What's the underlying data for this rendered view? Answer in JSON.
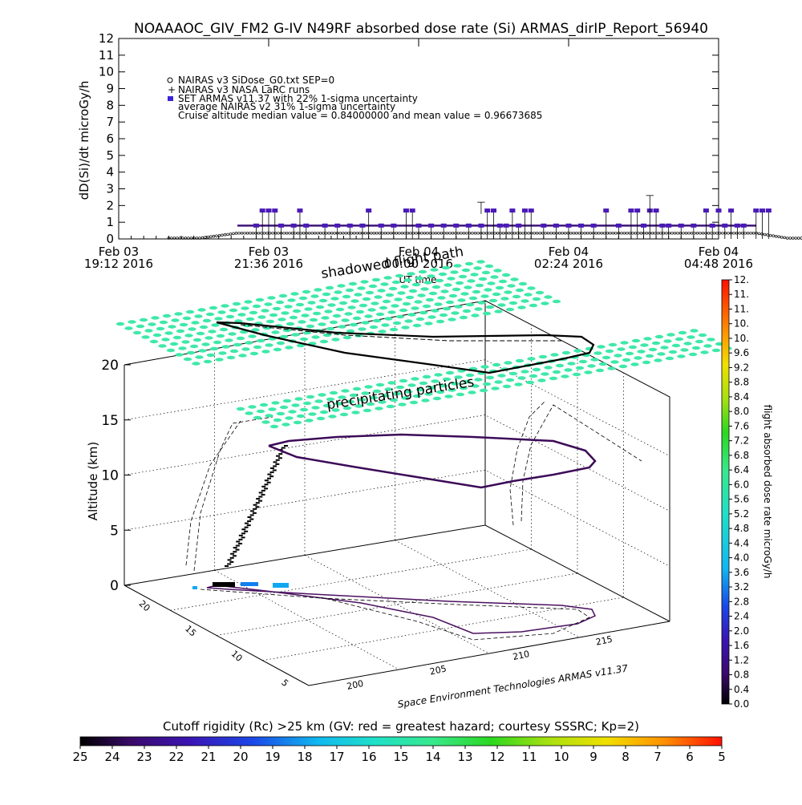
{
  "title": "NOAAAOC_GIV_FM2 G-IV   N49RF  absorbed dose rate (Si) ARMAS_dirIP_Report_56940",
  "chart_data": [
    {
      "type": "scatter",
      "ylabel": "dD(Si)/dt microGy/h",
      "xlabel": "UT time",
      "ylim": [
        0,
        12
      ],
      "y_ticks": [
        "0",
        "1",
        "2",
        "3",
        "4",
        "5",
        "6",
        "7",
        "8",
        "9",
        "10",
        "11",
        "12"
      ],
      "x_ticks": [
        {
          "line1": "Feb 03",
          "line2": "19:12 2016"
        },
        {
          "line1": "Feb 03",
          "line2": "21:36 2016"
        },
        {
          "line1": "Feb 04",
          "line2": "00:00 2016"
        },
        {
          "line1": "Feb 04",
          "line2": "02:24 2016"
        },
        {
          "line1": "Feb 04",
          "line2": "04:48 2016"
        }
      ],
      "x_tick_hours": [
        0,
        2.4,
        4.8,
        7.2,
        9.6
      ],
      "legend": [
        "NAIRAS v3 SiDose_G0.txt SEP=0",
        "NAIRAS v3 NASA LaRC runs",
        "SET ARMAS v11.37 with 22% 1-sigma uncertainty",
        "average NAIRAS v2 31% 1-sigma uncertainty",
        "Cruise altitude median value = 0.84000000 and mean value = 0.96673685"
      ],
      "legend_placement": "top-left",
      "series": [
        {
          "name": "SET ARMAS v11.37 with 22% 1-sigma uncertainty",
          "color": "#4a1ab8",
          "points": [
            [
              2.2,
              0.8
            ],
            [
              2.3,
              1.7
            ],
            [
              2.4,
              1.7
            ],
            [
              2.5,
              1.7
            ],
            [
              2.6,
              0.8
            ],
            [
              2.8,
              0.8
            ],
            [
              2.9,
              1.7
            ],
            [
              3.0,
              0.8
            ],
            [
              3.3,
              0.8
            ],
            [
              3.5,
              0.8
            ],
            [
              3.7,
              0.8
            ],
            [
              3.9,
              0.8
            ],
            [
              4.0,
              1.7
            ],
            [
              4.2,
              0.8
            ],
            [
              4.4,
              0.8
            ],
            [
              4.6,
              1.7
            ],
            [
              4.7,
              1.7
            ],
            [
              4.8,
              0.8
            ],
            [
              5.0,
              0.8
            ],
            [
              5.2,
              0.8
            ],
            [
              5.4,
              0.8
            ],
            [
              5.6,
              0.8
            ],
            [
              5.8,
              0.8
            ],
            [
              5.9,
              1.7
            ],
            [
              6.0,
              1.7
            ],
            [
              6.1,
              0.8
            ],
            [
              6.2,
              0.8
            ],
            [
              6.3,
              1.7
            ],
            [
              6.4,
              0.8
            ],
            [
              6.5,
              1.7
            ],
            [
              6.6,
              1.7
            ],
            [
              6.8,
              0.8
            ],
            [
              7.0,
              0.8
            ],
            [
              7.2,
              0.8
            ],
            [
              7.4,
              0.8
            ],
            [
              7.6,
              0.8
            ],
            [
              7.8,
              1.7
            ],
            [
              8.0,
              0.8
            ],
            [
              8.2,
              1.7
            ],
            [
              8.3,
              1.7
            ],
            [
              8.4,
              0.8
            ],
            [
              8.5,
              1.7
            ],
            [
              8.6,
              1.7
            ],
            [
              8.7,
              0.8
            ],
            [
              8.8,
              0.8
            ],
            [
              9.0,
              0.8
            ],
            [
              9.2,
              0.8
            ],
            [
              9.4,
              1.7
            ],
            [
              9.5,
              0.8
            ],
            [
              9.6,
              1.7
            ],
            [
              9.7,
              0.8
            ],
            [
              9.8,
              1.7
            ],
            [
              9.9,
              0.8
            ],
            [
              10.0,
              0.8
            ],
            [
              10.2,
              1.7
            ],
            [
              10.3,
              1.7
            ],
            [
              10.4,
              1.7
            ]
          ]
        },
        {
          "name": "NAIRAS v3 SiDose_G0.txt SEP=0",
          "color": "#000000",
          "segment": {
            "x_start": 0.8,
            "x_end": 11.0,
            "cruise_start": 1.9,
            "cruise_end": 10.2,
            "cruise_value": 0.35
          }
        }
      ]
    },
    {
      "type": "scatter",
      "title": "shadowed flight path",
      "zlabel": "Altitude (km)",
      "z_ticks": [
        "0",
        "5",
        "10",
        "15",
        "20"
      ],
      "zlim": [
        0,
        20
      ],
      "lon_ticks": [
        "200",
        "205",
        "210",
        "215"
      ],
      "lat_ticks": [
        "5",
        "10",
        "15",
        "20"
      ],
      "credit": "Space Environment Technologies ARMAS v11.37",
      "annotation": "precipitating particles",
      "colorbar": {
        "label": "flight absorbed dose rate microGy/h",
        "range": [
          0.0,
          12.0
        ],
        "ticks": [
          "0.0",
          "0.4",
          "0.8",
          "1.2",
          "1.6",
          "2.0",
          "2.4",
          "2.8",
          "3.2",
          "3.6",
          "4.0",
          "4.4",
          "4.8",
          "5.2",
          "5.6",
          "6.0",
          "6.4",
          "6.8",
          "7.2",
          "7.6",
          "8.0",
          "8.4",
          "8.8",
          "9.2",
          "9.6",
          "10.",
          "10.",
          "11.",
          "11.",
          "12."
        ]
      },
      "rigidity_bar": {
        "label": "Cutoff rigidity (Rc) >25 km (GV: red = greatest hazard; courtesy SSSRC; Kp=2)",
        "ticks": [
          "25",
          "24",
          "23",
          "22",
          "21",
          "20",
          "19",
          "18",
          "17",
          "16",
          "15",
          "14",
          "13",
          "12",
          "11",
          "10",
          "9",
          "8",
          "7",
          "6",
          "5"
        ]
      },
      "layer_color": "#3ee8a8"
    }
  ]
}
